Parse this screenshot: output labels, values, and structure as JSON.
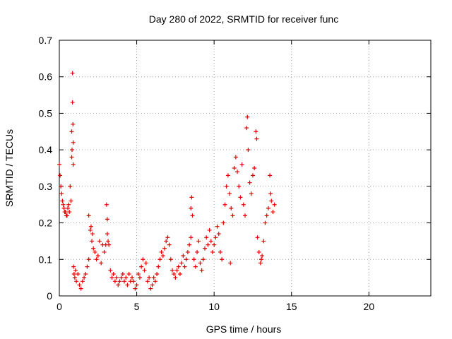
{
  "chart_data": {
    "type": "scatter",
    "title": "Day 280 of 2022, SRMTID for receiver func",
    "xlabel": "GPS time / hours",
    "ylabel": "SRMTID / TECUs",
    "xlim": [
      0,
      24
    ],
    "ylim": [
      0,
      0.7
    ],
    "x_ticks": [
      0,
      5,
      10,
      15,
      20
    ],
    "y_ticks": [
      0,
      0.1,
      0.2,
      0.3,
      0.4,
      0.5,
      0.6,
      0.7
    ],
    "x_tick_labels": [
      "0",
      "5",
      "10",
      "15",
      "20"
    ],
    "y_tick_labels": [
      "0",
      "0.1",
      "0.2",
      "0.3",
      "0.4",
      "0.5",
      "0.6",
      "0.7"
    ],
    "grid": true,
    "marker": "+",
    "color": "#e00000",
    "series": [
      {
        "name": "SRMTID",
        "points": [
          [
            0.0,
            0.36
          ],
          [
            0.05,
            0.33
          ],
          [
            0.1,
            0.3
          ],
          [
            0.15,
            0.28
          ],
          [
            0.2,
            0.26
          ],
          [
            0.25,
            0.25
          ],
          [
            0.3,
            0.24
          ],
          [
            0.35,
            0.23
          ],
          [
            0.4,
            0.23
          ],
          [
            0.45,
            0.22
          ],
          [
            0.5,
            0.22
          ],
          [
            0.55,
            0.24
          ],
          [
            0.6,
            0.25
          ],
          [
            0.65,
            0.23
          ],
          [
            0.7,
            0.3
          ],
          [
            0.75,
            0.26
          ],
          [
            0.8,
            0.38
          ],
          [
            0.8,
            0.45
          ],
          [
            0.82,
            0.4
          ],
          [
            0.85,
            0.61
          ],
          [
            0.85,
            0.53
          ],
          [
            0.88,
            0.47
          ],
          [
            0.9,
            0.42
          ],
          [
            0.9,
            0.36
          ],
          [
            0.92,
            0.08
          ],
          [
            0.95,
            0.06
          ],
          [
            1.0,
            0.05
          ],
          [
            1.05,
            0.07
          ],
          [
            1.1,
            0.04
          ],
          [
            1.2,
            0.06
          ],
          [
            1.3,
            0.03
          ],
          [
            1.4,
            0.02
          ],
          [
            1.5,
            0.04
          ],
          [
            1.6,
            0.05
          ],
          [
            1.7,
            0.06
          ],
          [
            1.8,
            0.08
          ],
          [
            1.9,
            0.1
          ],
          [
            1.9,
            0.22
          ],
          [
            2.0,
            0.18
          ],
          [
            2.05,
            0.19
          ],
          [
            2.1,
            0.15
          ],
          [
            2.15,
            0.17
          ],
          [
            2.2,
            0.13
          ],
          [
            2.3,
            0.12
          ],
          [
            2.4,
            0.1
          ],
          [
            2.5,
            0.11
          ],
          [
            2.6,
            0.15
          ],
          [
            2.7,
            0.09
          ],
          [
            2.8,
            0.14
          ],
          [
            2.9,
            0.12
          ],
          [
            3.0,
            0.14
          ],
          [
            3.05,
            0.25
          ],
          [
            3.1,
            0.21
          ],
          [
            3.1,
            0.17
          ],
          [
            3.15,
            0.15
          ],
          [
            3.2,
            0.14
          ],
          [
            3.3,
            0.07
          ],
          [
            3.4,
            0.05
          ],
          [
            3.5,
            0.06
          ],
          [
            3.6,
            0.04
          ],
          [
            3.7,
            0.05
          ],
          [
            3.8,
            0.03
          ],
          [
            3.9,
            0.04
          ],
          [
            4.0,
            0.05
          ],
          [
            4.1,
            0.06
          ],
          [
            4.2,
            0.04
          ],
          [
            4.3,
            0.05
          ],
          [
            4.4,
            0.03
          ],
          [
            4.5,
            0.06
          ],
          [
            4.6,
            0.04
          ],
          [
            4.7,
            0.05
          ],
          [
            4.8,
            0.04
          ],
          [
            4.9,
            0.02
          ],
          [
            5.0,
            0.03
          ],
          [
            5.1,
            0.06
          ],
          [
            5.2,
            0.05
          ],
          [
            5.3,
            0.08
          ],
          [
            5.4,
            0.1
          ],
          [
            5.5,
            0.07
          ],
          [
            5.6,
            0.09
          ],
          [
            5.7,
            0.04
          ],
          [
            5.8,
            0.05
          ],
          [
            5.9,
            0.02
          ],
          [
            6.0,
            0.03
          ],
          [
            6.1,
            0.05
          ],
          [
            6.2,
            0.04
          ],
          [
            6.3,
            0.06
          ],
          [
            6.4,
            0.08
          ],
          [
            6.5,
            0.1
          ],
          [
            6.6,
            0.12
          ],
          [
            6.7,
            0.11
          ],
          [
            6.8,
            0.13
          ],
          [
            6.9,
            0.15
          ],
          [
            7.0,
            0.16
          ],
          [
            7.1,
            0.14
          ],
          [
            7.2,
            0.1
          ],
          [
            7.3,
            0.07
          ],
          [
            7.4,
            0.06
          ],
          [
            7.5,
            0.05
          ],
          [
            7.6,
            0.07
          ],
          [
            7.7,
            0.08
          ],
          [
            7.8,
            0.06
          ],
          [
            7.9,
            0.09
          ],
          [
            8.0,
            0.11
          ],
          [
            8.1,
            0.08
          ],
          [
            8.2,
            0.1
          ],
          [
            8.3,
            0.12
          ],
          [
            8.4,
            0.14
          ],
          [
            8.5,
            0.16
          ],
          [
            8.5,
            0.24
          ],
          [
            8.55,
            0.27
          ],
          [
            8.6,
            0.22
          ],
          [
            8.7,
            0.1
          ],
          [
            8.8,
            0.08
          ],
          [
            8.9,
            0.12
          ],
          [
            9.0,
            0.15
          ],
          [
            9.1,
            0.09
          ],
          [
            9.2,
            0.07
          ],
          [
            9.3,
            0.1
          ],
          [
            9.4,
            0.13
          ],
          [
            9.5,
            0.16
          ],
          [
            9.6,
            0.14
          ],
          [
            9.7,
            0.18
          ],
          [
            9.8,
            0.15
          ],
          [
            9.9,
            0.12
          ],
          [
            10.0,
            0.14
          ],
          [
            10.1,
            0.16
          ],
          [
            10.2,
            0.19
          ],
          [
            10.3,
            0.17
          ],
          [
            10.4,
            0.12
          ],
          [
            10.5,
            0.1
          ],
          [
            10.6,
            0.2
          ],
          [
            10.7,
            0.25
          ],
          [
            10.8,
            0.3
          ],
          [
            10.9,
            0.33
          ],
          [
            11.0,
            0.28
          ],
          [
            11.05,
            0.09
          ],
          [
            11.1,
            0.24
          ],
          [
            11.2,
            0.22
          ],
          [
            11.3,
            0.35
          ],
          [
            11.4,
            0.38
          ],
          [
            11.5,
            0.34
          ],
          [
            11.6,
            0.3
          ],
          [
            11.7,
            0.27
          ],
          [
            11.8,
            0.36
          ],
          [
            11.9,
            0.25
          ],
          [
            12.0,
            0.22
          ],
          [
            12.1,
            0.46
          ],
          [
            12.15,
            0.49
          ],
          [
            12.2,
            0.4
          ],
          [
            12.3,
            0.31
          ],
          [
            12.4,
            0.28
          ],
          [
            12.5,
            0.33
          ],
          [
            12.6,
            0.35
          ],
          [
            12.7,
            0.45
          ],
          [
            12.75,
            0.43
          ],
          [
            12.8,
            0.16
          ],
          [
            12.9,
            0.12
          ],
          [
            13.0,
            0.09
          ],
          [
            13.05,
            0.1
          ],
          [
            13.1,
            0.11
          ],
          [
            13.2,
            0.15
          ],
          [
            13.3,
            0.2
          ],
          [
            13.4,
            0.22
          ],
          [
            13.5,
            0.24
          ],
          [
            13.6,
            0.33
          ],
          [
            13.65,
            0.28
          ],
          [
            13.7,
            0.26
          ],
          [
            13.8,
            0.23
          ],
          [
            13.9,
            0.25
          ]
        ]
      }
    ]
  }
}
